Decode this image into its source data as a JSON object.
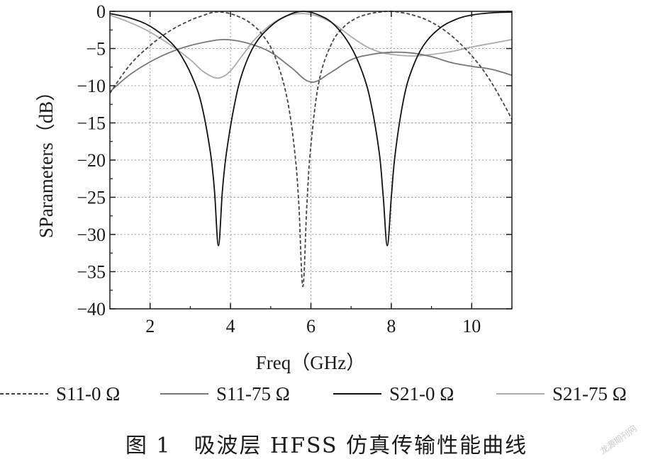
{
  "chart_data": {
    "type": "line",
    "xlabel": "Freq（GHz）",
    "ylabel": "SParameters（dB）",
    "xlim": [
      1,
      11
    ],
    "ylim": [
      -40,
      0
    ],
    "xticks": [
      2,
      4,
      6,
      8,
      10
    ],
    "xtick_labels": [
      "2",
      "4",
      "6",
      "8",
      "10"
    ],
    "yticks": [
      0,
      -5,
      -10,
      -15,
      -20,
      -25,
      -30,
      -35,
      -40
    ],
    "ytick_labels": [
      "0",
      "−5",
      "−10",
      "−15",
      "−20",
      "−25",
      "−30",
      "−35",
      "−40"
    ],
    "grid": true,
    "legend_position": "bottom",
    "series": [
      {
        "name": "S11-0 Ω",
        "color": "#444444",
        "dash": "dashed",
        "x": [
          1,
          1.5,
          2,
          2.5,
          3,
          3.3,
          3.6,
          3.9,
          4.2,
          4.5,
          4.8,
          5.1,
          5.4,
          5.6,
          5.7,
          5.8,
          5.9,
          6.0,
          6.2,
          6.5,
          6.8,
          7.1,
          7.4,
          7.7,
          8.0,
          8.3,
          8.6,
          8.9,
          9.2,
          9.5,
          9.8,
          10.1,
          10.4,
          10.7,
          11
        ],
        "y": [
          -11,
          -7.2,
          -4.6,
          -2.6,
          -1.2,
          -0.6,
          -0.1,
          -0.2,
          -0.7,
          -1.6,
          -3.2,
          -6,
          -11.5,
          -19,
          -26,
          -37,
          -26,
          -18,
          -9.5,
          -4.5,
          -2.2,
          -1,
          -0.4,
          -0.1,
          0,
          -0.2,
          -0.6,
          -1.2,
          -2.1,
          -3.3,
          -4.8,
          -6.6,
          -8.8,
          -11.5,
          -14.5
        ]
      },
      {
        "name": "S11-75 Ω",
        "color": "#777777",
        "dash": "solid",
        "x": [
          1,
          1.5,
          2,
          2.5,
          3,
          3.5,
          3.8,
          4.1,
          4.5,
          5.0,
          5.5,
          6.0,
          6.5,
          7.0,
          7.5,
          8.0,
          8.5,
          9.0,
          9.5,
          10.0,
          10.5,
          11
        ],
        "y": [
          -10.8,
          -8.5,
          -6.8,
          -5.5,
          -4.6,
          -4,
          -3.8,
          -3.9,
          -4.4,
          -5.5,
          -7.5,
          -9.5,
          -8.2,
          -6.5,
          -5.8,
          -5.5,
          -5.6,
          -6.1,
          -6.9,
          -7.4,
          -7.8,
          -8.6
        ]
      },
      {
        "name": "S21-0 Ω",
        "color": "#111111",
        "dash": "solid",
        "x": [
          1,
          1.5,
          2,
          2.5,
          2.8,
          3.1,
          3.3,
          3.5,
          3.6,
          3.7,
          3.8,
          3.9,
          4.1,
          4.3,
          4.6,
          5.0,
          5.4,
          5.8,
          6.2,
          6.6,
          7.0,
          7.3,
          7.5,
          7.7,
          7.8,
          7.9,
          8.0,
          8.1,
          8.3,
          8.5,
          8.8,
          9.2,
          9.6,
          10.0,
          10.5,
          11
        ],
        "y": [
          -0.3,
          -0.9,
          -2,
          -4.1,
          -6.2,
          -9.5,
          -13,
          -19,
          -24,
          -31.5,
          -24,
          -19,
          -12.5,
          -8.2,
          -4.5,
          -2,
          -0.6,
          0,
          -0.5,
          -1.9,
          -4.8,
          -8.5,
          -12.5,
          -19,
          -25,
          -31.5,
          -25,
          -19,
          -12,
          -8,
          -4.6,
          -2.3,
          -1.1,
          -0.5,
          -0.2,
          -0.1
        ]
      },
      {
        "name": "S21-75 Ω",
        "color": "#aaaaaa",
        "dash": "solid",
        "x": [
          1,
          1.5,
          2,
          2.5,
          3,
          3.3,
          3.6,
          3.8,
          4.0,
          4.3,
          4.6,
          5.0,
          5.4,
          5.8,
          6.2,
          6.6,
          7.0,
          7.4,
          7.8,
          8.2,
          8.6,
          9.0,
          9.5,
          10.0,
          10.5,
          11
        ],
        "y": [
          -0.5,
          -1.5,
          -2.8,
          -4.5,
          -6.5,
          -8,
          -8.9,
          -8.8,
          -8,
          -5.9,
          -3.8,
          -1.8,
          -0.6,
          -0.3,
          -0.7,
          -1.8,
          -3.4,
          -4.8,
          -5.6,
          -5.9,
          -6,
          -5.8,
          -5.4,
          -4.8,
          -4.3,
          -3.8
        ]
      }
    ]
  },
  "caption": "图 1　吸波层 HFSS 仿真传输性能曲线",
  "watermark": "龙源期刊网"
}
